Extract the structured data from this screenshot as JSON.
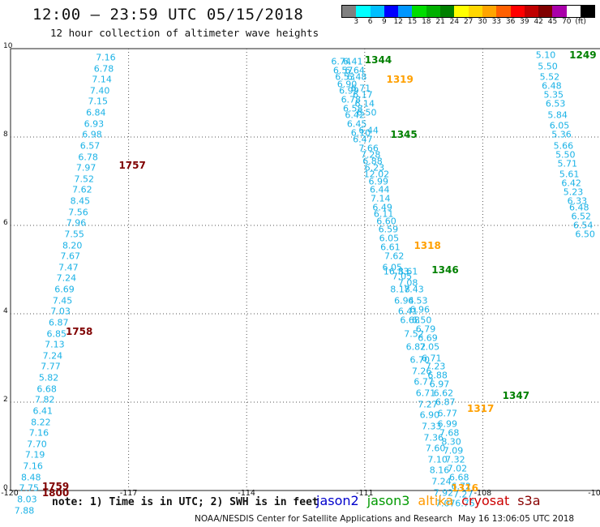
{
  "header": {
    "title": "12:00 – 23:59 UTC 05/15/2018",
    "subtitle": "12 hour collection of altimeter wave heights"
  },
  "legend": {
    "colors": [
      "#808080",
      "#00ffff",
      "#00bfff",
      "#0000ff",
      "#0096ff",
      "#00dd00",
      "#00b000",
      "#008000",
      "#ffff00",
      "#ffd700",
      "#ffa500",
      "#ff6000",
      "#ff0000",
      "#c00000",
      "#800000",
      "#aa00aa",
      "#ffffff",
      "#000000"
    ],
    "labels": [
      "3",
      "6",
      "9",
      "12",
      "15",
      "18",
      "21",
      "24",
      "27",
      "30",
      "33",
      "36",
      "39",
      "42",
      "45",
      "70",
      "(ft)"
    ]
  },
  "axes": {
    "x_ticks": [
      "-120",
      "-117",
      "-114",
      "-111",
      "-108",
      "-10"
    ],
    "y_ticks": [
      "10",
      "8",
      "6",
      "4",
      "2",
      "0"
    ]
  },
  "map_extent": {
    "lon_min": -120,
    "lon_max": -105,
    "lat_min": 0,
    "lat_max": 10
  },
  "passes": [
    {
      "time": "1757",
      "color": "#800000",
      "lon": -117.25,
      "lat": 7.35
    },
    {
      "time": "1758",
      "color": "#800000",
      "lon": -118.6,
      "lat": 3.6
    },
    {
      "time": "1759",
      "color": "#800000",
      "lon": -119.2,
      "lat": 0.1
    },
    {
      "time": "1800",
      "color": "#800000",
      "lon": -119.2,
      "lat": -0.05
    },
    {
      "time": "1344",
      "color": "#008000",
      "lon": -111.0,
      "lat": 9.75
    },
    {
      "time": "1345",
      "color": "#008000",
      "lon": -110.35,
      "lat": 8.05
    },
    {
      "time": "1346",
      "color": "#008000",
      "lon": -109.3,
      "lat": 5.0
    },
    {
      "time": "1347",
      "color": "#008000",
      "lon": -107.5,
      "lat": 2.15
    },
    {
      "time": "1249",
      "color": "#008000",
      "lon": -105.8,
      "lat": 9.85
    },
    {
      "time": "1319",
      "color": "#ffa000",
      "lon": -110.45,
      "lat": 9.3
    },
    {
      "time": "1318",
      "color": "#ffa000",
      "lon": -109.75,
      "lat": 5.55
    },
    {
      "time": "1317",
      "color": "#ffa000",
      "lon": -108.4,
      "lat": 1.85
    },
    {
      "time": "1316",
      "color": "#ffa000",
      "lon": -108.8,
      "lat": 0.05
    }
  ],
  "tracks": [
    {
      "color": "#1ab2e6",
      "points": [
        {
          "lon": -117.58,
          "lat": 9.8,
          "v": "7.16"
        },
        {
          "lon": -117.63,
          "lat": 9.55,
          "v": "6.78"
        },
        {
          "lon": -117.68,
          "lat": 9.3,
          "v": "7.14"
        },
        {
          "lon": -117.73,
          "lat": 9.05,
          "v": "7.40"
        },
        {
          "lon": -117.78,
          "lat": 8.8,
          "v": "7.15"
        },
        {
          "lon": -117.83,
          "lat": 8.55,
          "v": "6.84"
        },
        {
          "lon": -117.88,
          "lat": 8.3,
          "v": "6.93"
        },
        {
          "lon": -117.93,
          "lat": 8.05,
          "v": "6.98"
        },
        {
          "lon": -117.98,
          "lat": 7.8,
          "v": "6.57"
        },
        {
          "lon": -118.03,
          "lat": 7.55,
          "v": "6.78"
        },
        {
          "lon": -118.08,
          "lat": 7.3,
          "v": "7.97"
        },
        {
          "lon": -118.13,
          "lat": 7.05,
          "v": "7.52"
        },
        {
          "lon": -118.18,
          "lat": 6.8,
          "v": "7.62"
        },
        {
          "lon": -118.23,
          "lat": 6.55,
          "v": "8.45"
        },
        {
          "lon": -118.28,
          "lat": 6.3,
          "v": "7.56"
        },
        {
          "lon": -118.33,
          "lat": 6.05,
          "v": "7.96"
        },
        {
          "lon": -118.38,
          "lat": 5.8,
          "v": "7.55"
        },
        {
          "lon": -118.43,
          "lat": 5.55,
          "v": "8.20"
        },
        {
          "lon": -118.48,
          "lat": 5.3,
          "v": "7.67"
        },
        {
          "lon": -118.53,
          "lat": 5.05,
          "v": "7.47"
        },
        {
          "lon": -118.58,
          "lat": 4.8,
          "v": "7.24"
        },
        {
          "lon": -118.63,
          "lat": 4.55,
          "v": "6.69"
        },
        {
          "lon": -118.68,
          "lat": 4.3,
          "v": "7.45"
        },
        {
          "lon": -118.73,
          "lat": 4.05,
          "v": "7.03"
        },
        {
          "lon": -118.78,
          "lat": 3.8,
          "v": "6.87"
        },
        {
          "lon": -118.83,
          "lat": 3.55,
          "v": "6.85"
        },
        {
          "lon": -118.88,
          "lat": 3.3,
          "v": "7.13"
        },
        {
          "lon": -118.93,
          "lat": 3.05,
          "v": "7.24"
        },
        {
          "lon": -118.98,
          "lat": 2.8,
          "v": "7.77"
        },
        {
          "lon": -119.03,
          "lat": 2.55,
          "v": "5.82"
        },
        {
          "lon": -119.08,
          "lat": 2.3,
          "v": "6.68"
        },
        {
          "lon": -119.13,
          "lat": 2.05,
          "v": "7.82"
        },
        {
          "lon": -119.18,
          "lat": 1.8,
          "v": "6.41"
        },
        {
          "lon": -119.23,
          "lat": 1.55,
          "v": "8.22"
        },
        {
          "lon": -119.28,
          "lat": 1.3,
          "v": "7.16"
        },
        {
          "lon": -119.33,
          "lat": 1.05,
          "v": "7.70"
        },
        {
          "lon": -119.38,
          "lat": 0.8,
          "v": "7.19"
        },
        {
          "lon": -119.43,
          "lat": 0.55,
          "v": "7.16"
        },
        {
          "lon": -119.48,
          "lat": 0.3,
          "v": "8.48"
        },
        {
          "lon": -119.53,
          "lat": 0.05,
          "v": "7.75"
        },
        {
          "lon": -119.58,
          "lat": -0.2,
          "v": "8.03"
        },
        {
          "lon": -119.65,
          "lat": -0.45,
          "v": "7.88"
        }
      ]
    },
    {
      "color": "#1ab2e6",
      "points": [
        {
          "lon": -111.6,
          "lat": 9.7,
          "v": "6.74"
        },
        {
          "lon": -111.3,
          "lat": 9.7,
          "v": "6.41"
        },
        {
          "lon": -111.55,
          "lat": 9.5,
          "v": "6.57"
        },
        {
          "lon": -111.25,
          "lat": 9.5,
          "v": "6.64"
        },
        {
          "lon": -111.5,
          "lat": 9.35,
          "v": "6.53"
        },
        {
          "lon": -111.2,
          "lat": 9.35,
          "v": "6.48"
        },
        {
          "lon": -111.45,
          "lat": 9.2,
          "v": "6.90"
        },
        {
          "lon": -111.1,
          "lat": 9.1,
          "v": "6.71"
        },
        {
          "lon": -111.4,
          "lat": 9.05,
          "v": "6.99"
        },
        {
          "lon": -111.05,
          "lat": 8.95,
          "v": "6.17"
        },
        {
          "lon": -111.35,
          "lat": 8.85,
          "v": "6.78"
        },
        {
          "lon": -111.0,
          "lat": 8.75,
          "v": "6.14"
        },
        {
          "lon": -111.3,
          "lat": 8.65,
          "v": "6.58"
        },
        {
          "lon": -111.25,
          "lat": 8.5,
          "v": "6.42"
        },
        {
          "lon": -110.95,
          "lat": 8.55,
          "v": "6.50"
        },
        {
          "lon": -111.2,
          "lat": 8.3,
          "v": "6.45"
        },
        {
          "lon": -111.1,
          "lat": 8.1,
          "v": "6.10"
        },
        {
          "lon": -110.9,
          "lat": 8.15,
          "v": "6.44"
        },
        {
          "lon": -111.05,
          "lat": 7.95,
          "v": "6.47"
        },
        {
          "lon": -110.9,
          "lat": 7.75,
          "v": "7.66"
        },
        {
          "lon": -110.85,
          "lat": 7.6,
          "v": "7.28"
        },
        {
          "lon": -110.8,
          "lat": 7.45,
          "v": "6.88"
        },
        {
          "lon": -110.75,
          "lat": 7.3,
          "v": "6.23"
        },
        {
          "lon": -110.7,
          "lat": 7.15,
          "v": "12.02"
        },
        {
          "lon": -110.65,
          "lat": 7.0,
          "v": "6.99"
        },
        {
          "lon": -110.62,
          "lat": 6.8,
          "v": "6.44"
        },
        {
          "lon": -110.6,
          "lat": 6.6,
          "v": "7.14"
        },
        {
          "lon": -110.55,
          "lat": 6.4,
          "v": "6.49"
        },
        {
          "lon": -110.52,
          "lat": 6.25,
          "v": "6.11"
        },
        {
          "lon": -110.45,
          "lat": 6.1,
          "v": "6.60"
        },
        {
          "lon": -110.4,
          "lat": 5.9,
          "v": "6.59"
        },
        {
          "lon": -110.38,
          "lat": 5.7,
          "v": "6.05"
        },
        {
          "lon": -110.35,
          "lat": 5.5,
          "v": "6.61"
        },
        {
          "lon": -110.25,
          "lat": 5.3,
          "v": "7.62"
        },
        {
          "lon": -110.3,
          "lat": 5.05,
          "v": "6.05"
        },
        {
          "lon": -110.05,
          "lat": 4.85,
          "v": "7.05"
        },
        {
          "lon": -110.2,
          "lat": 4.95,
          "v": "16.33"
        },
        {
          "lon": -109.9,
          "lat": 4.95,
          "v": "8.61"
        },
        {
          "lon": -109.9,
          "lat": 4.7,
          "v": "7.08"
        },
        {
          "lon": -110.1,
          "lat": 4.55,
          "v": "8.18"
        },
        {
          "lon": -109.75,
          "lat": 4.55,
          "v": "7.43"
        },
        {
          "lon": -110.0,
          "lat": 4.3,
          "v": "6.94"
        },
        {
          "lon": -109.65,
          "lat": 4.3,
          "v": "6.53"
        },
        {
          "lon": -109.9,
          "lat": 4.05,
          "v": "6.41"
        },
        {
          "lon": -109.6,
          "lat": 4.1,
          "v": "6.96"
        },
        {
          "lon": -109.85,
          "lat": 3.85,
          "v": "6.68"
        },
        {
          "lon": -109.55,
          "lat": 3.85,
          "v": "6.50"
        },
        {
          "lon": -109.45,
          "lat": 3.65,
          "v": "6.79"
        },
        {
          "lon": -109.75,
          "lat": 3.55,
          "v": "7.52"
        },
        {
          "lon": -109.4,
          "lat": 3.45,
          "v": "6.69"
        },
        {
          "lon": -109.7,
          "lat": 3.25,
          "v": "6.82"
        },
        {
          "lon": -109.35,
          "lat": 3.25,
          "v": "7.05"
        },
        {
          "lon": -109.6,
          "lat": 2.95,
          "v": "6.70"
        },
        {
          "lon": -109.3,
          "lat": 3.0,
          "v": "6.71"
        },
        {
          "lon": -109.55,
          "lat": 2.7,
          "v": "7.26"
        },
        {
          "lon": -109.2,
          "lat": 2.8,
          "v": "7.23"
        },
        {
          "lon": -109.15,
          "lat": 2.6,
          "v": "6.88"
        },
        {
          "lon": -109.5,
          "lat": 2.45,
          "v": "6.77"
        },
        {
          "lon": -109.1,
          "lat": 2.4,
          "v": "6.97"
        },
        {
          "lon": -109.45,
          "lat": 2.2,
          "v": "6.71"
        },
        {
          "lon": -109.0,
          "lat": 2.2,
          "v": "6.62"
        },
        {
          "lon": -108.95,
          "lat": 2.0,
          "v": "6.87"
        },
        {
          "lon": -109.4,
          "lat": 1.95,
          "v": "7.27"
        },
        {
          "lon": -109.35,
          "lat": 1.7,
          "v": "6.90"
        },
        {
          "lon": -108.9,
          "lat": 1.75,
          "v": "6.77"
        },
        {
          "lon": -108.9,
          "lat": 1.5,
          "v": "6.99"
        },
        {
          "lon": -109.3,
          "lat": 1.45,
          "v": "7.33"
        },
        {
          "lon": -108.85,
          "lat": 1.3,
          "v": "7.68"
        },
        {
          "lon": -109.25,
          "lat": 1.2,
          "v": "7.36"
        },
        {
          "lon": -108.8,
          "lat": 1.1,
          "v": "8.30"
        },
        {
          "lon": -109.2,
          "lat": 0.95,
          "v": "7.60"
        },
        {
          "lon": -108.75,
          "lat": 0.9,
          "v": "7.09"
        },
        {
          "lon": -109.15,
          "lat": 0.7,
          "v": "7.10"
        },
        {
          "lon": -108.7,
          "lat": 0.7,
          "v": "7.32"
        },
        {
          "lon": -108.65,
          "lat": 0.5,
          "v": "7.02"
        },
        {
          "lon": -109.1,
          "lat": 0.45,
          "v": "8.16"
        },
        {
          "lon": -108.6,
          "lat": 0.3,
          "v": "6.68"
        },
        {
          "lon": -109.05,
          "lat": 0.2,
          "v": "7.24"
        },
        {
          "lon": -108.55,
          "lat": 0.1,
          "v": "6.72"
        },
        {
          "lon": -109.0,
          "lat": -0.05,
          "v": "7.92"
        },
        {
          "lon": -108.5,
          "lat": -0.1,
          "v": "7.27"
        },
        {
          "lon": -108.95,
          "lat": -0.3,
          "v": "7.07"
        },
        {
          "lon": -108.45,
          "lat": -0.3,
          "v": "6.75"
        }
      ]
    },
    {
      "color": "#1ab2e6",
      "points": [
        {
          "lon": -106.4,
          "lat": 9.85,
          "v": "5.10"
        },
        {
          "lon": -106.35,
          "lat": 9.6,
          "v": "5.50"
        },
        {
          "lon": -106.3,
          "lat": 9.35,
          "v": "5.52"
        },
        {
          "lon": -106.25,
          "lat": 9.15,
          "v": "6.48"
        },
        {
          "lon": -106.2,
          "lat": 8.95,
          "v": "5.35"
        },
        {
          "lon": -106.15,
          "lat": 8.75,
          "v": "6.53"
        },
        {
          "lon": -106.1,
          "lat": 8.5,
          "v": "5.84"
        },
        {
          "lon": -106.05,
          "lat": 8.25,
          "v": "6.05"
        },
        {
          "lon": -106.0,
          "lat": 8.05,
          "v": "5.36"
        },
        {
          "lon": -105.95,
          "lat": 7.8,
          "v": "5.66"
        },
        {
          "lon": -105.9,
          "lat": 7.6,
          "v": "5.50"
        },
        {
          "lon": -105.85,
          "lat": 7.4,
          "v": "5.71"
        },
        {
          "lon": -105.8,
          "lat": 7.15,
          "v": "5.61"
        },
        {
          "lon": -105.75,
          "lat": 6.95,
          "v": "6.42"
        },
        {
          "lon": -105.7,
          "lat": 6.75,
          "v": "5.23"
        },
        {
          "lon": -105.6,
          "lat": 6.55,
          "v": "6.33"
        },
        {
          "lon": -105.55,
          "lat": 6.4,
          "v": "6.48"
        },
        {
          "lon": -105.5,
          "lat": 6.2,
          "v": "6.52"
        },
        {
          "lon": -105.45,
          "lat": 6.0,
          "v": "6.54"
        },
        {
          "lon": -105.4,
          "lat": 5.8,
          "v": "6.50"
        }
      ]
    }
  ],
  "footer": {
    "note": "note: 1) Time is in UTC; 2) SWH is in feet",
    "satellites": [
      {
        "name": "jason2",
        "color": "#0000cc"
      },
      {
        "name": "jason3",
        "color": "#009900"
      },
      {
        "name": "altika",
        "color": "#ff9900"
      },
      {
        "name": "cryosat",
        "color": "#cc0000"
      },
      {
        "name": "s3a",
        "color": "#880000"
      }
    ],
    "credit": "NOAA/NESDIS Center for Satellite Applications and Research",
    "timestamp": "May 16 13:06:05 UTC 2018"
  }
}
